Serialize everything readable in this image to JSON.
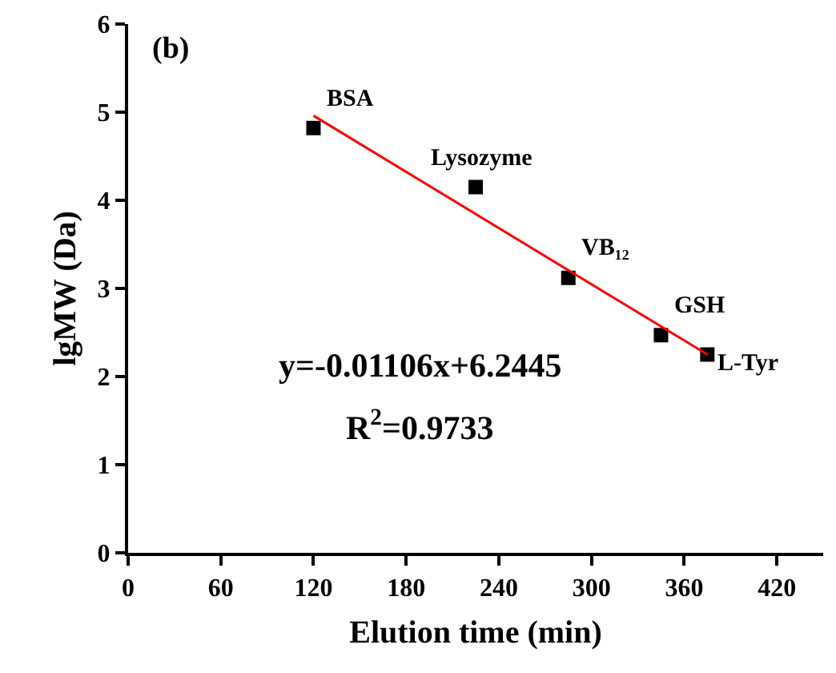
{
  "chart_data": {
    "type": "scatter",
    "title": "(b)",
    "xlabel": "Elution time (min)",
    "ylabel": "lgMW (Da)",
    "xlim": [
      0,
      450
    ],
    "xticks": [
      0,
      60,
      120,
      180,
      240,
      300,
      360,
      420
    ],
    "ylim": [
      0,
      6
    ],
    "yticks": [
      0,
      1,
      2,
      3,
      4,
      5,
      6
    ],
    "grid": false,
    "series": [
      {
        "color": "#000000",
        "marker": "square",
        "x": [
          120,
          225,
          285,
          345,
          375
        ],
        "values": [
          4.82,
          4.15,
          3.12,
          2.47,
          2.25
        ]
      },
      {
        "type": "line",
        "color": "#ff0000",
        "marker": "none",
        "line_style": "solid",
        "x": [
          120,
          375
        ],
        "values": [
          4.96,
          2.25
        ]
      }
    ],
    "annotations": [
      {
        "text": "BSA",
        "x": 120,
        "y": 4.82
      },
      {
        "text": "Lysozyme",
        "x": 225,
        "y": 4.15
      },
      {
        "text": "VB₁₂",
        "x": 285,
        "y": 3.12
      },
      {
        "text": "GSH",
        "x": 345,
        "y": 2.47
      },
      {
        "text": "L-Tyr",
        "x": 375,
        "y": 2.25
      },
      "y=-0.01106x+6.2445",
      "R$^{2}$=0.9733"
    ]
  }
}
